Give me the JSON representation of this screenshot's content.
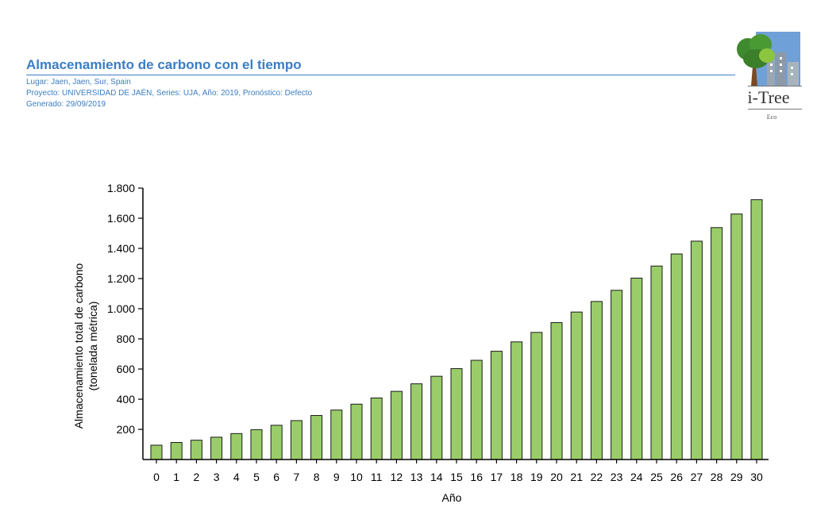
{
  "report": {
    "title": "Almacenamiento de carbono con el tiempo",
    "location": "Lugar: Jaen, Jaen, Sur, Spain",
    "project": "Proyecto: UNIVERSIDAD DE JAÉN, Series: UJA, Año: 2019, Pronóstico: Defecto",
    "generated": "Generado: 29/09/2019"
  },
  "logo": {
    "brand": "i-Tree",
    "product": "Eco",
    "icon": "tree-city-icon"
  },
  "colors": {
    "accent": "#3b7dc4",
    "bar_fill": "#9acd6a",
    "bar_stroke": "#1a1a1a"
  },
  "chart_data": {
    "type": "bar",
    "title": "",
    "xlabel": "Año",
    "ylabel": "Almacenamiento total de carbono (tonelada métrica)",
    "ylabel_lines": [
      "Almacenamiento total de carbono",
      "(tonelada métrica)"
    ],
    "ylim": [
      0,
      1800
    ],
    "yticks": [
      200,
      400,
      600,
      800,
      1000,
      1200,
      1400,
      1600,
      1800
    ],
    "ytick_labels": [
      "200",
      "400",
      "600",
      "800",
      "1.000",
      "1.200",
      "1.400",
      "1.600",
      "1.800"
    ],
    "grid": false,
    "categories": [
      "0",
      "1",
      "2",
      "3",
      "4",
      "5",
      "6",
      "7",
      "8",
      "9",
      "10",
      "11",
      "12",
      "13",
      "14",
      "15",
      "16",
      "17",
      "18",
      "19",
      "20",
      "21",
      "22",
      "23",
      "24",
      "25",
      "26",
      "27",
      "28",
      "29",
      "30"
    ],
    "values": [
      95,
      113,
      128,
      148,
      172,
      198,
      227,
      258,
      292,
      328,
      367,
      408,
      452,
      502,
      552,
      603,
      658,
      718,
      780,
      843,
      908,
      978,
      1048,
      1122,
      1203,
      1283,
      1363,
      1448,
      1538,
      1628,
      1723
    ]
  }
}
